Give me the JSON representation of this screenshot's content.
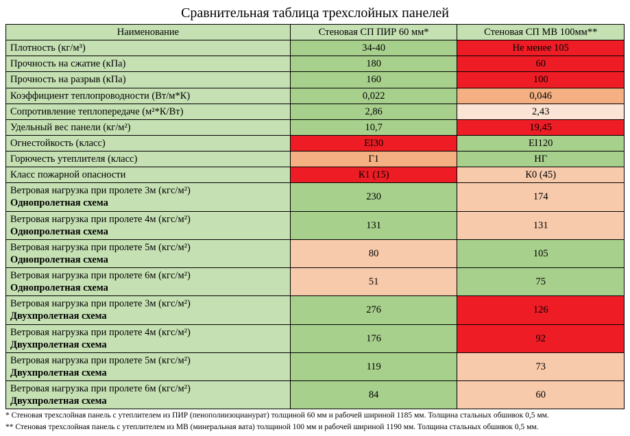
{
  "colors": {
    "green_light": "#c5e0b3",
    "green_mid": "#a8d08d",
    "red_xlight": "#fbe4d5",
    "red_light": "#f7caac",
    "red_mid": "#f4b083",
    "red_strong": "#ee1c25"
  },
  "title": "Сравнительная таблица трехслойных панелей",
  "headers": {
    "name": "Наименование",
    "pir": "Стеновая СП ПИР 60 мм*",
    "mv": "Стеновая СП МВ 100мм**"
  },
  "rows": [
    {
      "type": "single",
      "name": "Плотность (кг/м³)",
      "pir": "34-40",
      "pir_c": "green_mid",
      "mv": "Не менее 105",
      "mv_c": "red_strong"
    },
    {
      "type": "single",
      "name": "Прочность на сжатие (кПа)",
      "pir": "180",
      "pir_c": "green_mid",
      "mv": "60",
      "mv_c": "red_strong"
    },
    {
      "type": "single",
      "name": "Прочность на разрыв (кПа)",
      "pir": "160",
      "pir_c": "green_mid",
      "mv": "100",
      "mv_c": "red_strong"
    },
    {
      "type": "single",
      "name": "Коэффициент теплопроводности (Вт/м*К)",
      "pir": "0,022",
      "pir_c": "green_mid",
      "mv": "0,046",
      "mv_c": "red_mid"
    },
    {
      "type": "single",
      "name": "Сопротивление теплопередаче (м²*К/Вт)",
      "pir": "2,86",
      "pir_c": "green_mid",
      "mv": "2,43",
      "mv_c": "red_xlight"
    },
    {
      "type": "single",
      "name": "Удельный вес панели (кг/м²)",
      "pir": "10,7",
      "pir_c": "green_mid",
      "mv": "19,45",
      "mv_c": "red_strong"
    },
    {
      "type": "single",
      "name": "Огнестойкость (класс)",
      "pir": "EI30",
      "pir_c": "red_strong",
      "mv": "EI120",
      "mv_c": "green_mid"
    },
    {
      "type": "single",
      "name": "Горючесть утеплителя (класс)",
      "pir": "Г1",
      "pir_c": "red_mid",
      "mv": "НГ",
      "mv_c": "green_mid"
    },
    {
      "type": "single",
      "name": "Класс пожарной опасности",
      "pir": "К1 (15)",
      "pir_c": "red_strong",
      "mv": "К0 (45)",
      "mv_c": "red_light"
    },
    {
      "type": "tall",
      "line1": "Ветровая нагрузка при пролете 3м (кгс/м²)",
      "line2": "Однопролетная схема",
      "pir": "230",
      "pir_c": "green_mid",
      "mv": "174",
      "mv_c": "red_light"
    },
    {
      "type": "tall",
      "line1": "Ветровая нагрузка при пролете 4м (кгс/м²)",
      "line2": "Однопролетная схема",
      "pir": "131",
      "pir_c": "green_mid",
      "mv": "131",
      "mv_c": "red_light"
    },
    {
      "type": "tall",
      "line1": "Ветровая нагрузка при пролете 5м (кгс/м²)",
      "line2": "Однопролетная схема",
      "pir": "80",
      "pir_c": "red_light",
      "mv": "105",
      "mv_c": "green_mid"
    },
    {
      "type": "tall",
      "line1": "Ветровая нагрузка при пролете 6м (кгс/м²)",
      "line2": "Однопролетная схема",
      "pir": "51",
      "pir_c": "red_light",
      "mv": "75",
      "mv_c": "green_mid"
    },
    {
      "type": "tall",
      "line1": "Ветровая нагрузка при пролете 3м (кгс/м²)",
      "line2": "Двухпролетная схема",
      "pir": "276",
      "pir_c": "green_mid",
      "mv": "126",
      "mv_c": "red_strong"
    },
    {
      "type": "tall",
      "line1": "Ветровая нагрузка при пролете 4м (кгс/м²)",
      "line2": "Двухпролетная схема",
      "pir": "176",
      "pir_c": "green_mid",
      "mv": "92",
      "mv_c": "red_strong"
    },
    {
      "type": "tall",
      "line1": "Ветровая нагрузка при пролете 5м (кгс/м²)",
      "line2": "Двухпролетная схема",
      "pir": "119",
      "pir_c": "green_mid",
      "mv": "73",
      "mv_c": "red_light"
    },
    {
      "type": "tall",
      "line1": "Ветровая нагрузка при пролете 6м (кгс/м²)",
      "line2": "Двухпролетная схема",
      "pir": "84",
      "pir_c": "green_mid",
      "mv": "60",
      "mv_c": "red_light"
    }
  ],
  "footnotes": [
    "* Стеновая трехслойная панель с утеплителем из ПИР (пенополиизоцианурат) толщиной 60 мм и рабочей шириной 1185 мм. Толщина стальных обшивок 0,5 мм.",
    "** Стеновая трехслойная панель с утеплителем из МВ (минеральная вата) толщиной 100 мм и рабочей шириной 1190 мм. Толщина стальных обшивок 0,5 мм."
  ]
}
